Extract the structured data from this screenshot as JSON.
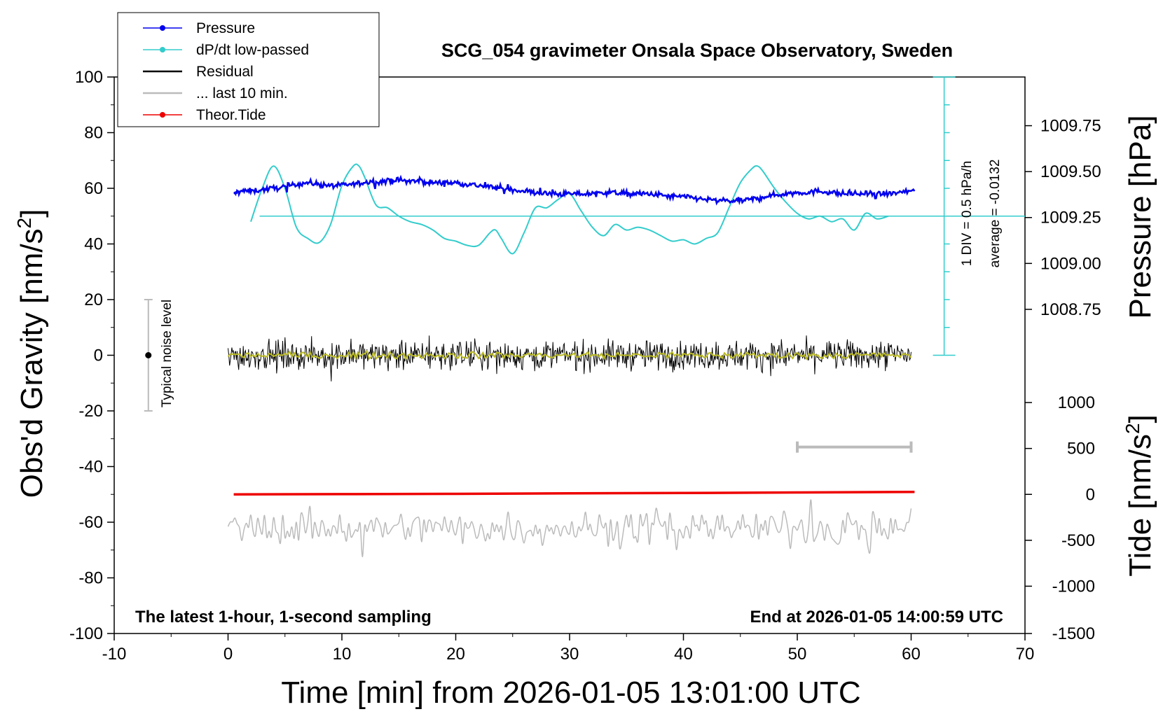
{
  "chart_data": {
    "type": "line",
    "title": "SCG_054 gravimeter Onsala Space Observatory, Sweden",
    "xlabel": "Time [min] from 2026-01-05 13:01:00 UTC",
    "ylabel_left": "Obs'd Gravity [nm/s",
    "ylabel_left_sup": "2",
    "ylabel_left_tail": "]",
    "ylabel_right_top": "Pressure [hPa]",
    "ylabel_right_bottom": "Tide [nm/s",
    "ylabel_right_bottom_sup": "2",
    "ylabel_right_bottom_tail": "]",
    "xlim": [
      -10,
      70
    ],
    "ylim": [
      -100,
      100
    ],
    "x_ticks": [
      "-10",
      "0",
      "10",
      "20",
      "30",
      "40",
      "50",
      "60",
      "70"
    ],
    "y_ticks": [
      "100",
      "80",
      "60",
      "40",
      "20",
      "0",
      "-20",
      "-40",
      "-60",
      "-80",
      "-100"
    ],
    "pressure_axis": {
      "ticks": [
        {
          "label": "1009.75",
          "gravity": 82.5
        },
        {
          "label": "1009.50",
          "gravity": 66
        },
        {
          "label": "1009.25",
          "gravity": 49.5
        },
        {
          "label": "1009.00",
          "gravity": 33
        },
        {
          "label": "1008.75",
          "gravity": 16.5
        }
      ]
    },
    "tide_axis": {
      "ticks": [
        {
          "label": "1000",
          "gravity": -17
        },
        {
          "label": "500",
          "gravity": -33.5
        },
        {
          "label": "0",
          "gravity": -50
        },
        {
          "label": "-500",
          "gravity": -66.5
        },
        {
          "label": "-1000",
          "gravity": -83
        },
        {
          "label": "-1500",
          "gravity": -100
        }
      ]
    },
    "legend": {
      "placement": "top-left",
      "entries": [
        {
          "label": "Pressure",
          "color": "#0000ee",
          "marker": true
        },
        {
          "label": "dP/dt low-passed",
          "color": "#33cccc",
          "marker": true
        },
        {
          "label": "Residual",
          "color": "#000000",
          "marker": false
        },
        {
          "label": "... last 10 min.",
          "color": "#bbbbbb",
          "marker": false
        },
        {
          "label": "Theor.Tide",
          "color": "#ee0000",
          "marker": true
        }
      ]
    },
    "annotations": {
      "bottom_left": "The latest 1-hour, 1-second sampling",
      "bottom_right": "End at 2026-01-05 14:00:59 UTC",
      "noise_label": "Typical noise level",
      "div_label": "1 DIV = 0.5 hPa/h",
      "average_label": "average = -0.0132"
    },
    "noise_bar": {
      "x": -7,
      "center": 0,
      "half_range": 20
    },
    "last10_bar": {
      "x_start": 50,
      "x_end": 60,
      "y": -33
    },
    "dpdt_baseline": 50,
    "dpdt_scale": {
      "x": 62.9,
      "y_bottom": 0,
      "y_top": 100,
      "divisions": 10
    },
    "series": [
      {
        "name": "Pressure",
        "color": "#0000ee",
        "x": [
          0.5,
          1,
          2,
          3,
          4,
          5,
          6,
          7,
          8,
          9,
          10,
          11,
          12,
          13,
          14,
          15,
          16,
          17,
          18,
          19,
          20,
          21,
          22,
          23,
          24,
          25,
          26,
          27,
          28,
          29,
          30,
          31,
          32,
          33,
          34,
          35,
          36,
          37,
          38,
          39,
          40,
          41,
          42,
          43,
          44,
          45,
          46,
          47,
          48,
          49,
          50,
          51,
          52,
          53,
          54,
          55,
          56,
          57,
          58,
          59,
          60.3
        ],
        "y": [
          58,
          59,
          59,
          59.5,
          60,
          60.5,
          61.5,
          62,
          61.5,
          61,
          61,
          61.5,
          62,
          62.5,
          62.5,
          63,
          62.5,
          62.5,
          62,
          62,
          62,
          61.5,
          61,
          60.5,
          60,
          59.5,
          59,
          58.5,
          58,
          58,
          58,
          58,
          58,
          58.5,
          58.5,
          58,
          58,
          58,
          57.5,
          57,
          57,
          56.5,
          56,
          55.5,
          55.5,
          55.5,
          56,
          57,
          57.5,
          58,
          58.5,
          58.5,
          59,
          58.5,
          58,
          58,
          58,
          58,
          58,
          58.5,
          59
        ]
      },
      {
        "name": "dP/dt low-passed",
        "color": "#33cccc",
        "x": [
          2,
          3,
          4,
          5,
          6,
          7,
          8,
          9,
          10,
          11,
          11.5,
          12,
          13,
          14,
          15,
          16,
          17,
          18,
          19,
          20,
          21,
          22,
          23,
          23.5,
          24,
          25,
          26,
          27,
          28,
          29,
          30,
          31,
          32,
          33,
          34,
          35,
          36,
          37,
          38,
          39,
          40,
          41,
          42,
          43,
          44,
          45,
          46,
          46.5,
          47,
          48,
          49,
          50,
          51,
          52,
          53,
          54,
          55,
          56,
          57,
          58
        ],
        "y": [
          48,
          60,
          68,
          60,
          46,
          42,
          40.5,
          47,
          61,
          68,
          68,
          64,
          54,
          53,
          50,
          48,
          47,
          45,
          42,
          41,
          39.5,
          39.5,
          44,
          45,
          42,
          36.5,
          44,
          53,
          53,
          56,
          58,
          52,
          46,
          43,
          47,
          45,
          46,
          45,
          43,
          41,
          41.5,
          40,
          42,
          44,
          53,
          62,
          67,
          68,
          66,
          60,
          55,
          51,
          49,
          50,
          48,
          49,
          45,
          51,
          49,
          50
        ]
      },
      {
        "name": "Residual",
        "color": "#000000",
        "x_start": 0,
        "x_end": 60,
        "y_center": 0,
        "y_amplitude": 5,
        "y_range_observed": [
          -13,
          12
        ]
      },
      {
        "name": "Residual smoothed",
        "color": "#bbbb22",
        "x_start": 0,
        "x_end": 60,
        "y_center": 0,
        "y_amplitude": 1.5
      },
      {
        "name": "... last 10 min.",
        "color": "#bbbbbb",
        "x_start": 0,
        "x_end": 60,
        "y_center": -62,
        "y_amplitude": 4,
        "y_range_observed": [
          -73,
          -51
        ]
      },
      {
        "name": "Theor.Tide",
        "color": "#ee0000",
        "x": [
          0.5,
          10,
          20,
          30,
          40,
          50,
          60.3
        ],
        "y": [
          -50,
          -49.9,
          -49.8,
          -49.6,
          -49.5,
          -49.3,
          -49.1
        ]
      }
    ]
  }
}
